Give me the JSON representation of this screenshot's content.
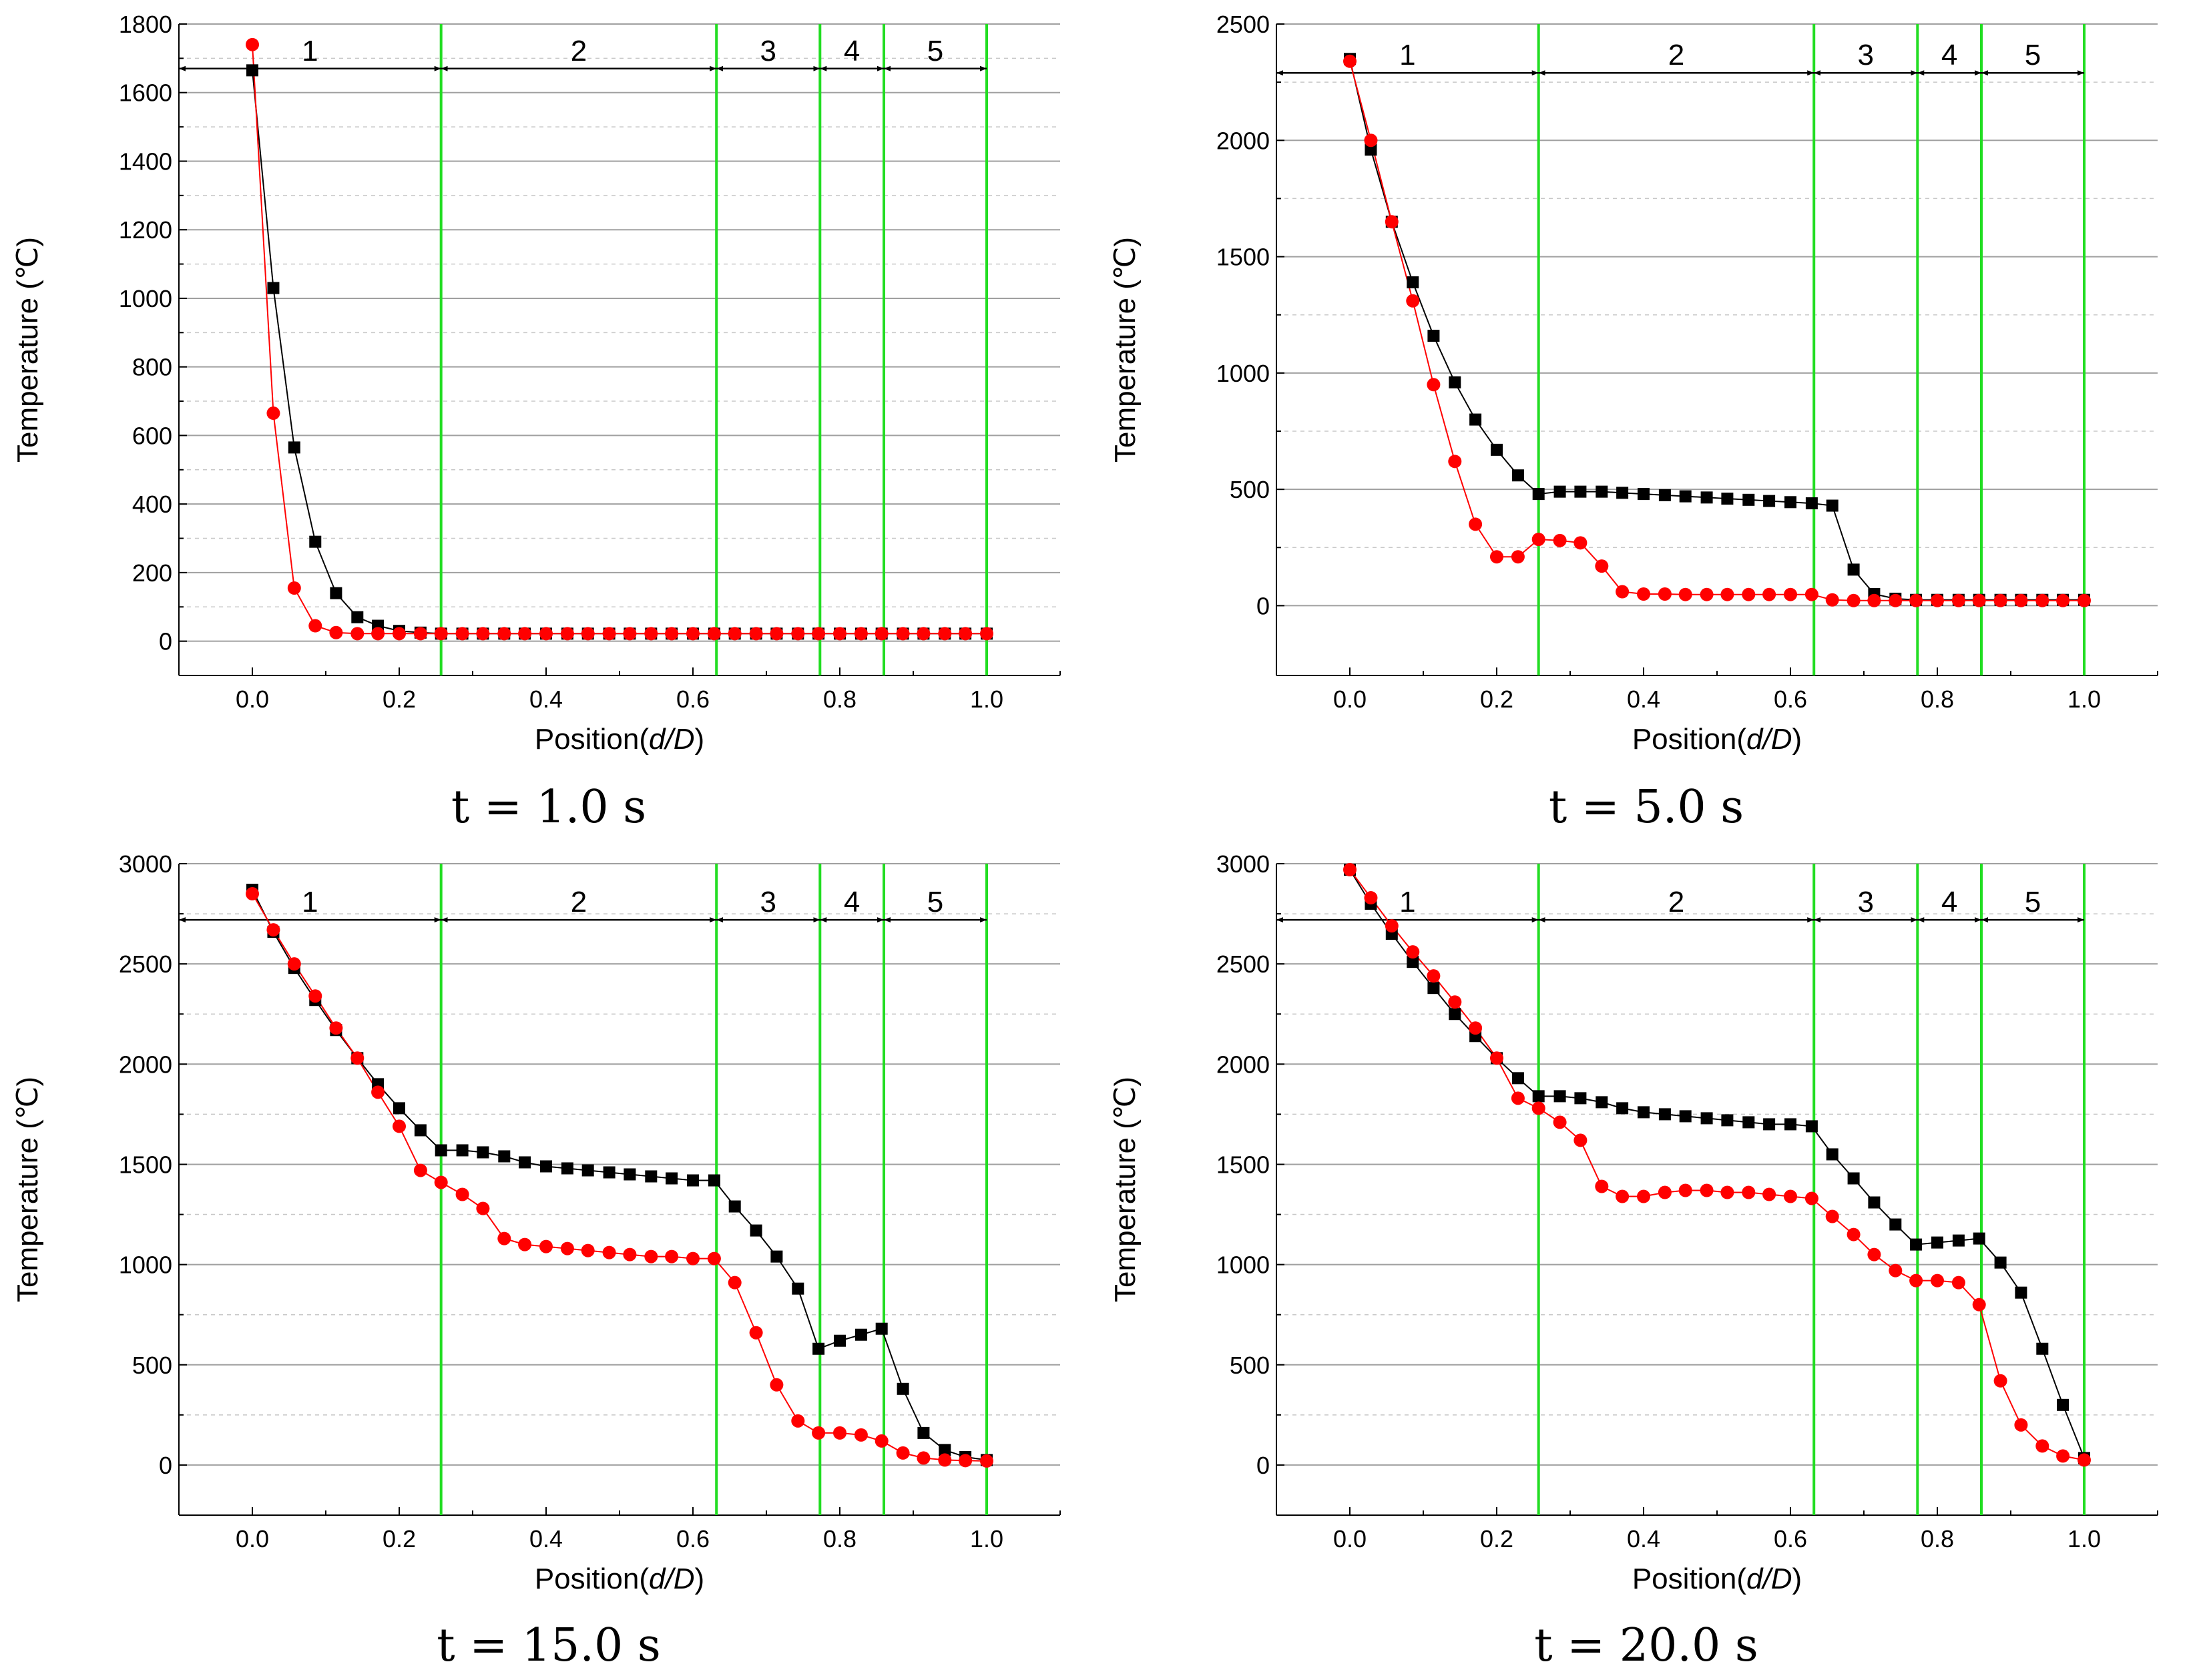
{
  "chart_data": [
    {
      "type": "line",
      "caption": "t = 1.0 s",
      "xlabel_prefix": "Position(",
      "xlabel_italic": "d/D",
      "xlabel_suffix": ")",
      "ylabel": "Temperature (℃)",
      "xlim": [
        -0.1,
        1.1
      ],
      "ylim": [
        -100,
        1800
      ],
      "xticks": [
        "0.0",
        "0.2",
        "0.4",
        "0.6",
        "0.8",
        "1.0"
      ],
      "yticks": [
        "0",
        "200",
        "400",
        "600",
        "800",
        "1000",
        "1200",
        "1400",
        "1600",
        "1800"
      ],
      "zone_boundaries": [
        0.257,
        0.632,
        0.773,
        0.86,
        1.0
      ],
      "zone_labels": [
        "1",
        "2",
        "3",
        "4",
        "5"
      ],
      "zone_arrow_value": 1670,
      "series": [
        {
          "name": "black-square",
          "color": "#000000",
          "marker": "square",
          "x": [
            0.0,
            0.0286,
            0.0571,
            0.0857,
            0.114,
            0.143,
            0.171,
            0.2,
            0.229,
            0.257,
            0.286,
            0.314,
            0.343,
            0.371,
            0.4,
            0.429,
            0.457,
            0.486,
            0.514,
            0.543,
            0.571,
            0.6,
            0.629,
            0.657,
            0.686,
            0.714,
            0.743,
            0.771,
            0.8,
            0.829,
            0.857,
            0.886,
            0.914,
            0.943,
            0.971,
            1.0
          ],
          "y": [
            1665,
            1030,
            565,
            290,
            140,
            70,
            45,
            30,
            25,
            22,
            22,
            22,
            22,
            22,
            22,
            22,
            22,
            22,
            22,
            22,
            22,
            22,
            22,
            22,
            22,
            22,
            22,
            22,
            22,
            22,
            22,
            22,
            22,
            22,
            22,
            22
          ]
        },
        {
          "name": "red-circle",
          "color": "#ff0000",
          "marker": "circle",
          "x": [
            0.0,
            0.0286,
            0.0571,
            0.0857,
            0.114,
            0.143,
            0.171,
            0.2,
            0.229,
            0.257,
            0.286,
            0.314,
            0.343,
            0.371,
            0.4,
            0.429,
            0.457,
            0.486,
            0.514,
            0.543,
            0.571,
            0.6,
            0.629,
            0.657,
            0.686,
            0.714,
            0.743,
            0.771,
            0.8,
            0.829,
            0.857,
            0.886,
            0.914,
            0.943,
            0.971,
            1.0
          ],
          "y": [
            1740,
            665,
            155,
            45,
            25,
            22,
            22,
            22,
            22,
            22,
            22,
            22,
            22,
            22,
            22,
            22,
            22,
            22,
            22,
            22,
            22,
            22,
            22,
            22,
            22,
            22,
            22,
            22,
            22,
            22,
            22,
            22,
            22,
            22,
            22,
            22
          ]
        }
      ]
    },
    {
      "type": "line",
      "caption": "t = 5.0 s",
      "xlabel_prefix": "Position(",
      "xlabel_italic": "d/D",
      "xlabel_suffix": ")",
      "ylabel": "Temperature (℃)",
      "xlim": [
        -0.1,
        1.1
      ],
      "ylim": [
        -300,
        2500
      ],
      "xticks": [
        "0.0",
        "0.2",
        "0.4",
        "0.6",
        "0.8",
        "1.0"
      ],
      "yticks": [
        "0",
        "500",
        "1000",
        "1500",
        "2000",
        "2500"
      ],
      "zone_boundaries": [
        0.257,
        0.632,
        0.773,
        0.86,
        1.0
      ],
      "zone_labels": [
        "1",
        "2",
        "3",
        "4",
        "5"
      ],
      "zone_arrow_value": 2290,
      "series": [
        {
          "name": "black-square",
          "color": "#000000",
          "marker": "square",
          "x": [
            0.0,
            0.0286,
            0.0571,
            0.0857,
            0.114,
            0.143,
            0.171,
            0.2,
            0.229,
            0.257,
            0.286,
            0.314,
            0.343,
            0.371,
            0.4,
            0.429,
            0.457,
            0.486,
            0.514,
            0.543,
            0.571,
            0.6,
            0.629,
            0.657,
            0.686,
            0.714,
            0.743,
            0.771,
            0.8,
            0.829,
            0.857,
            0.886,
            0.914,
            0.943,
            0.971,
            1.0
          ],
          "y": [
            2350,
            1960,
            1650,
            1390,
            1160,
            960,
            800,
            670,
            560,
            480,
            490,
            490,
            490,
            485,
            480,
            475,
            470,
            465,
            460,
            455,
            450,
            445,
            440,
            430,
            155,
            50,
            30,
            25,
            25,
            25,
            25,
            25,
            25,
            25,
            25,
            25
          ]
        },
        {
          "name": "red-circle",
          "color": "#ff0000",
          "marker": "circle",
          "x": [
            0.0,
            0.0286,
            0.0571,
            0.0857,
            0.114,
            0.143,
            0.171,
            0.2,
            0.229,
            0.257,
            0.286,
            0.314,
            0.343,
            0.371,
            0.4,
            0.429,
            0.457,
            0.486,
            0.514,
            0.543,
            0.571,
            0.6,
            0.629,
            0.657,
            0.686,
            0.714,
            0.743,
            0.771,
            0.8,
            0.829,
            0.857,
            0.886,
            0.914,
            0.943,
            0.971,
            1.0
          ],
          "y": [
            2340,
            2000,
            1650,
            1310,
            950,
            620,
            350,
            210,
            210,
            285,
            280,
            270,
            170,
            60,
            50,
            50,
            48,
            48,
            48,
            48,
            48,
            48,
            48,
            25,
            22,
            22,
            22,
            22,
            22,
            22,
            22,
            22,
            22,
            22,
            22,
            22
          ]
        }
      ]
    },
    {
      "type": "line",
      "caption": "t = 15.0 s",
      "xlabel_prefix": "Position(",
      "xlabel_italic": "d/D",
      "xlabel_suffix": ")",
      "ylabel": "Temperature (℃)",
      "xlim": [
        -0.1,
        1.1
      ],
      "ylim": [
        -250,
        3000
      ],
      "xticks": [
        "0.0",
        "0.2",
        "0.4",
        "0.6",
        "0.8",
        "1.0"
      ],
      "yticks": [
        "0",
        "500",
        "1000",
        "1500",
        "2000",
        "2500",
        "3000"
      ],
      "zone_boundaries": [
        0.257,
        0.632,
        0.773,
        0.86,
        1.0
      ],
      "zone_labels": [
        "1",
        "2",
        "3",
        "4",
        "5"
      ],
      "zone_arrow_value": 2720,
      "series": [
        {
          "name": "black-square",
          "color": "#000000",
          "marker": "square",
          "x": [
            0.0,
            0.0286,
            0.0571,
            0.0857,
            0.114,
            0.143,
            0.171,
            0.2,
            0.229,
            0.257,
            0.286,
            0.314,
            0.343,
            0.371,
            0.4,
            0.429,
            0.457,
            0.486,
            0.514,
            0.543,
            0.571,
            0.6,
            0.629,
            0.657,
            0.686,
            0.714,
            0.743,
            0.771,
            0.8,
            0.829,
            0.857,
            0.886,
            0.914,
            0.943,
            0.971,
            1.0
          ],
          "y": [
            2870,
            2660,
            2480,
            2320,
            2170,
            2030,
            1900,
            1780,
            1670,
            1570,
            1570,
            1560,
            1540,
            1510,
            1490,
            1480,
            1470,
            1460,
            1450,
            1440,
            1430,
            1420,
            1420,
            1290,
            1170,
            1040,
            880,
            580,
            620,
            650,
            680,
            380,
            160,
            75,
            40,
            25
          ]
        },
        {
          "name": "red-circle",
          "color": "#ff0000",
          "marker": "circle",
          "x": [
            0.0,
            0.0286,
            0.0571,
            0.0857,
            0.114,
            0.143,
            0.171,
            0.2,
            0.229,
            0.257,
            0.286,
            0.314,
            0.343,
            0.371,
            0.4,
            0.429,
            0.457,
            0.486,
            0.514,
            0.543,
            0.571,
            0.6,
            0.629,
            0.657,
            0.686,
            0.714,
            0.743,
            0.771,
            0.8,
            0.829,
            0.857,
            0.886,
            0.914,
            0.943,
            0.971,
            1.0
          ],
          "y": [
            2850,
            2670,
            2500,
            2340,
            2180,
            2030,
            1860,
            1690,
            1470,
            1410,
            1350,
            1280,
            1130,
            1100,
            1090,
            1080,
            1070,
            1060,
            1050,
            1040,
            1040,
            1030,
            1030,
            910,
            660,
            400,
            220,
            160,
            160,
            150,
            120,
            60,
            35,
            25,
            22,
            20
          ]
        }
      ]
    },
    {
      "type": "line",
      "caption": "t = 20.0 s",
      "xlabel_prefix": "Position(",
      "xlabel_italic": "d/D",
      "xlabel_suffix": ")",
      "ylabel": "Temperature (℃)",
      "xlim": [
        -0.1,
        1.1
      ],
      "ylim": [
        -250,
        3000
      ],
      "xticks": [
        "0.0",
        "0.2",
        "0.4",
        "0.6",
        "0.8",
        "1.0"
      ],
      "yticks": [
        "0",
        "500",
        "1000",
        "1500",
        "2000",
        "2500",
        "3000"
      ],
      "zone_boundaries": [
        0.257,
        0.632,
        0.773,
        0.86,
        1.0
      ],
      "zone_labels": [
        "1",
        "2",
        "3",
        "4",
        "5"
      ],
      "zone_arrow_value": 2720,
      "series": [
        {
          "name": "black-square",
          "color": "#000000",
          "marker": "square",
          "x": [
            0.0,
            0.0286,
            0.0571,
            0.0857,
            0.114,
            0.143,
            0.171,
            0.2,
            0.229,
            0.257,
            0.286,
            0.314,
            0.343,
            0.371,
            0.4,
            0.429,
            0.457,
            0.486,
            0.514,
            0.543,
            0.571,
            0.6,
            0.629,
            0.657,
            0.686,
            0.714,
            0.743,
            0.771,
            0.8,
            0.829,
            0.857,
            0.886,
            0.914,
            0.943,
            0.971,
            1.0
          ],
          "y": [
            2970,
            2800,
            2650,
            2510,
            2380,
            2250,
            2140,
            2030,
            1930,
            1840,
            1840,
            1830,
            1810,
            1780,
            1760,
            1750,
            1740,
            1730,
            1720,
            1710,
            1700,
            1700,
            1690,
            1550,
            1430,
            1310,
            1200,
            1100,
            1110,
            1120,
            1130,
            1010,
            860,
            580,
            300,
            35
          ]
        },
        {
          "name": "red-circle",
          "color": "#ff0000",
          "marker": "circle",
          "x": [
            0.0,
            0.0286,
            0.0571,
            0.0857,
            0.114,
            0.143,
            0.171,
            0.2,
            0.229,
            0.257,
            0.286,
            0.314,
            0.343,
            0.371,
            0.4,
            0.429,
            0.457,
            0.486,
            0.514,
            0.543,
            0.571,
            0.6,
            0.629,
            0.657,
            0.686,
            0.714,
            0.743,
            0.771,
            0.8,
            0.829,
            0.857,
            0.886,
            0.914,
            0.943,
            0.971,
            1.0
          ],
          "y": [
            2970,
            2830,
            2690,
            2560,
            2440,
            2310,
            2180,
            2030,
            1830,
            1780,
            1710,
            1620,
            1390,
            1340,
            1340,
            1360,
            1370,
            1370,
            1360,
            1360,
            1350,
            1340,
            1330,
            1240,
            1150,
            1050,
            970,
            920,
            920,
            910,
            800,
            420,
            200,
            95,
            45,
            25
          ]
        }
      ]
    }
  ]
}
